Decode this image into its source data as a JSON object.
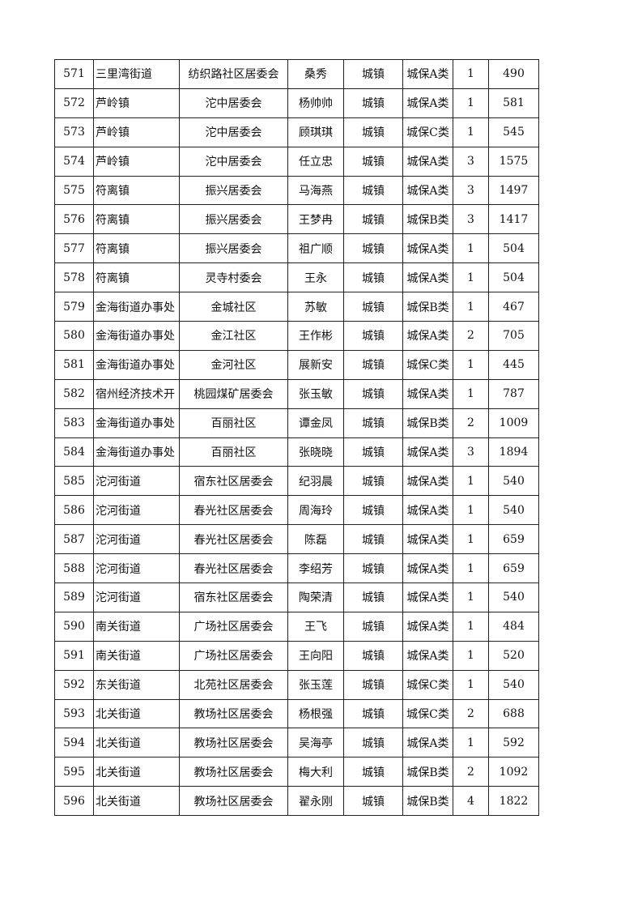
{
  "table": {
    "rows": [
      [
        "571",
        "三里湾街道",
        "纺织路社区居委会",
        "桑秀",
        "城镇",
        "城保A类",
        "1",
        "490"
      ],
      [
        "572",
        "芦岭镇",
        "沱中居委会",
        "杨帅帅",
        "城镇",
        "城保A类",
        "1",
        "581"
      ],
      [
        "573",
        "芦岭镇",
        "沱中居委会",
        "顾琪琪",
        "城镇",
        "城保C类",
        "1",
        "545"
      ],
      [
        "574",
        "芦岭镇",
        "沱中居委会",
        "任立忠",
        "城镇",
        "城保A类",
        "3",
        "1575"
      ],
      [
        "575",
        "符离镇",
        "振兴居委会",
        "马海燕",
        "城镇",
        "城保A类",
        "3",
        "1497"
      ],
      [
        "576",
        "符离镇",
        "振兴居委会",
        "王梦冉",
        "城镇",
        "城保B类",
        "3",
        "1417"
      ],
      [
        "577",
        "符离镇",
        "振兴居委会",
        "祖广顺",
        "城镇",
        "城保A类",
        "1",
        "504"
      ],
      [
        "578",
        "符离镇",
        "灵寺村委会",
        "王永",
        "城镇",
        "城保A类",
        "1",
        "504"
      ],
      [
        "579",
        "金海街道办事处",
        "金城社区",
        "苏敏",
        "城镇",
        "城保B类",
        "1",
        "467"
      ],
      [
        "580",
        "金海街道办事处",
        "金江社区",
        "王作彬",
        "城镇",
        "城保A类",
        "2",
        "705"
      ],
      [
        "581",
        "金海街道办事处",
        "金河社区",
        "展新安",
        "城镇",
        "城保C类",
        "1",
        "445"
      ],
      [
        "582",
        "宿州经济技术开",
        "桃园煤矿居委会",
        "张玉敏",
        "城镇",
        "城保A类",
        "1",
        "787"
      ],
      [
        "583",
        "金海街道办事处",
        "百丽社区",
        "谭金凤",
        "城镇",
        "城保B类",
        "2",
        "1009"
      ],
      [
        "584",
        "金海街道办事处",
        "百丽社区",
        "张晓晓",
        "城镇",
        "城保A类",
        "3",
        "1894"
      ],
      [
        "585",
        "沱河街道",
        "宿东社区居委会",
        "纪羽晨",
        "城镇",
        "城保A类",
        "1",
        "540"
      ],
      [
        "586",
        "沱河街道",
        "春光社区居委会",
        "周海玲",
        "城镇",
        "城保A类",
        "1",
        "540"
      ],
      [
        "587",
        "沱河街道",
        "春光社区居委会",
        "陈磊",
        "城镇",
        "城保A类",
        "1",
        "659"
      ],
      [
        "588",
        "沱河街道",
        "春光社区居委会",
        "李绍芳",
        "城镇",
        "城保A类",
        "1",
        "659"
      ],
      [
        "589",
        "沱河街道",
        "宿东社区居委会",
        "陶荣清",
        "城镇",
        "城保A类",
        "1",
        "540"
      ],
      [
        "590",
        "南关街道",
        "广场社区居委会",
        "王飞",
        "城镇",
        "城保A类",
        "1",
        "484"
      ],
      [
        "591",
        "南关街道",
        "广场社区居委会",
        "王向阳",
        "城镇",
        "城保A类",
        "1",
        "520"
      ],
      [
        "592",
        "东关街道",
        "北苑社区居委会",
        "张玉莲",
        "城镇",
        "城保C类",
        "1",
        "540"
      ],
      [
        "593",
        "北关街道",
        "教场社区居委会",
        "杨根强",
        "城镇",
        "城保C类",
        "2",
        "688"
      ],
      [
        "594",
        "北关街道",
        "教场社区居委会",
        "吴海亭",
        "城镇",
        "城保A类",
        "1",
        "592"
      ],
      [
        "595",
        "北关街道",
        "教场社区居委会",
        "梅大利",
        "城镇",
        "城保B类",
        "2",
        "1092"
      ],
      [
        "596",
        "北关街道",
        "教场社区居委会",
        "翟永刚",
        "城镇",
        "城保B类",
        "4",
        "1822"
      ]
    ]
  }
}
